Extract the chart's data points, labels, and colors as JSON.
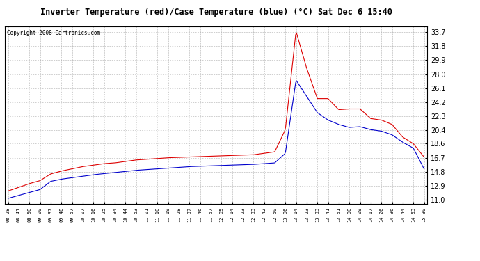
{
  "title": "Inverter Temperature (red)/Case Temperature (blue) (°C) Sat Dec 6 15:40",
  "copyright": "Copyright 2008 Cartronics.com",
  "yticks": [
    11.0,
    12.9,
    14.8,
    16.7,
    18.6,
    20.4,
    22.3,
    24.2,
    26.1,
    28.0,
    29.9,
    31.8,
    33.7
  ],
  "ylim": [
    10.5,
    34.5
  ],
  "bg_color": "#ffffff",
  "grid_color": "#aaaaaa",
  "red_color": "#dd0000",
  "blue_color": "#0000cc",
  "x_labels": [
    "08:28",
    "08:41",
    "08:50",
    "09:00",
    "09:37",
    "09:48",
    "09:57",
    "10:07",
    "10:16",
    "10:25",
    "10:34",
    "10:44",
    "10:53",
    "11:01",
    "11:10",
    "11:19",
    "11:28",
    "11:37",
    "11:46",
    "11:57",
    "12:05",
    "12:14",
    "12:23",
    "12:33",
    "12:42",
    "12:50",
    "13:06",
    "13:14",
    "13:23",
    "13:33",
    "13:41",
    "13:51",
    "14:00",
    "14:09",
    "14:17",
    "14:26",
    "14:36",
    "14:44",
    "14:53",
    "15:30"
  ],
  "red_y": [
    12.2,
    12.7,
    13.2,
    13.6,
    14.5,
    14.9,
    15.2,
    15.5,
    15.7,
    15.9,
    16.0,
    16.2,
    16.4,
    16.5,
    16.6,
    16.7,
    16.75,
    16.8,
    16.85,
    16.9,
    16.95,
    17.0,
    17.05,
    17.1,
    17.3,
    17.5,
    20.5,
    33.8,
    28.0,
    25.2,
    23.8,
    23.5,
    22.7,
    22.8,
    22.0,
    21.8,
    21.2,
    19.5,
    18.6,
    16.8
  ],
  "blue_y": [
    11.2,
    11.6,
    12.0,
    12.4,
    13.5,
    13.8,
    14.0,
    14.2,
    14.4,
    14.55,
    14.7,
    14.85,
    15.0,
    15.1,
    15.2,
    15.3,
    15.4,
    15.5,
    15.55,
    15.6,
    15.65,
    15.7,
    15.75,
    15.8,
    15.9,
    16.0,
    17.3,
    27.2,
    25.0,
    22.8,
    21.8,
    21.2,
    20.8,
    20.9,
    20.5,
    20.3,
    19.8,
    18.8,
    18.0,
    15.2
  ],
  "red_wiggles": {
    "indices": [
      28,
      29,
      30,
      31,
      32,
      33
    ],
    "offsets": [
      0.8,
      -0.5,
      0.9,
      -0.3,
      0.6,
      0.5
    ]
  }
}
